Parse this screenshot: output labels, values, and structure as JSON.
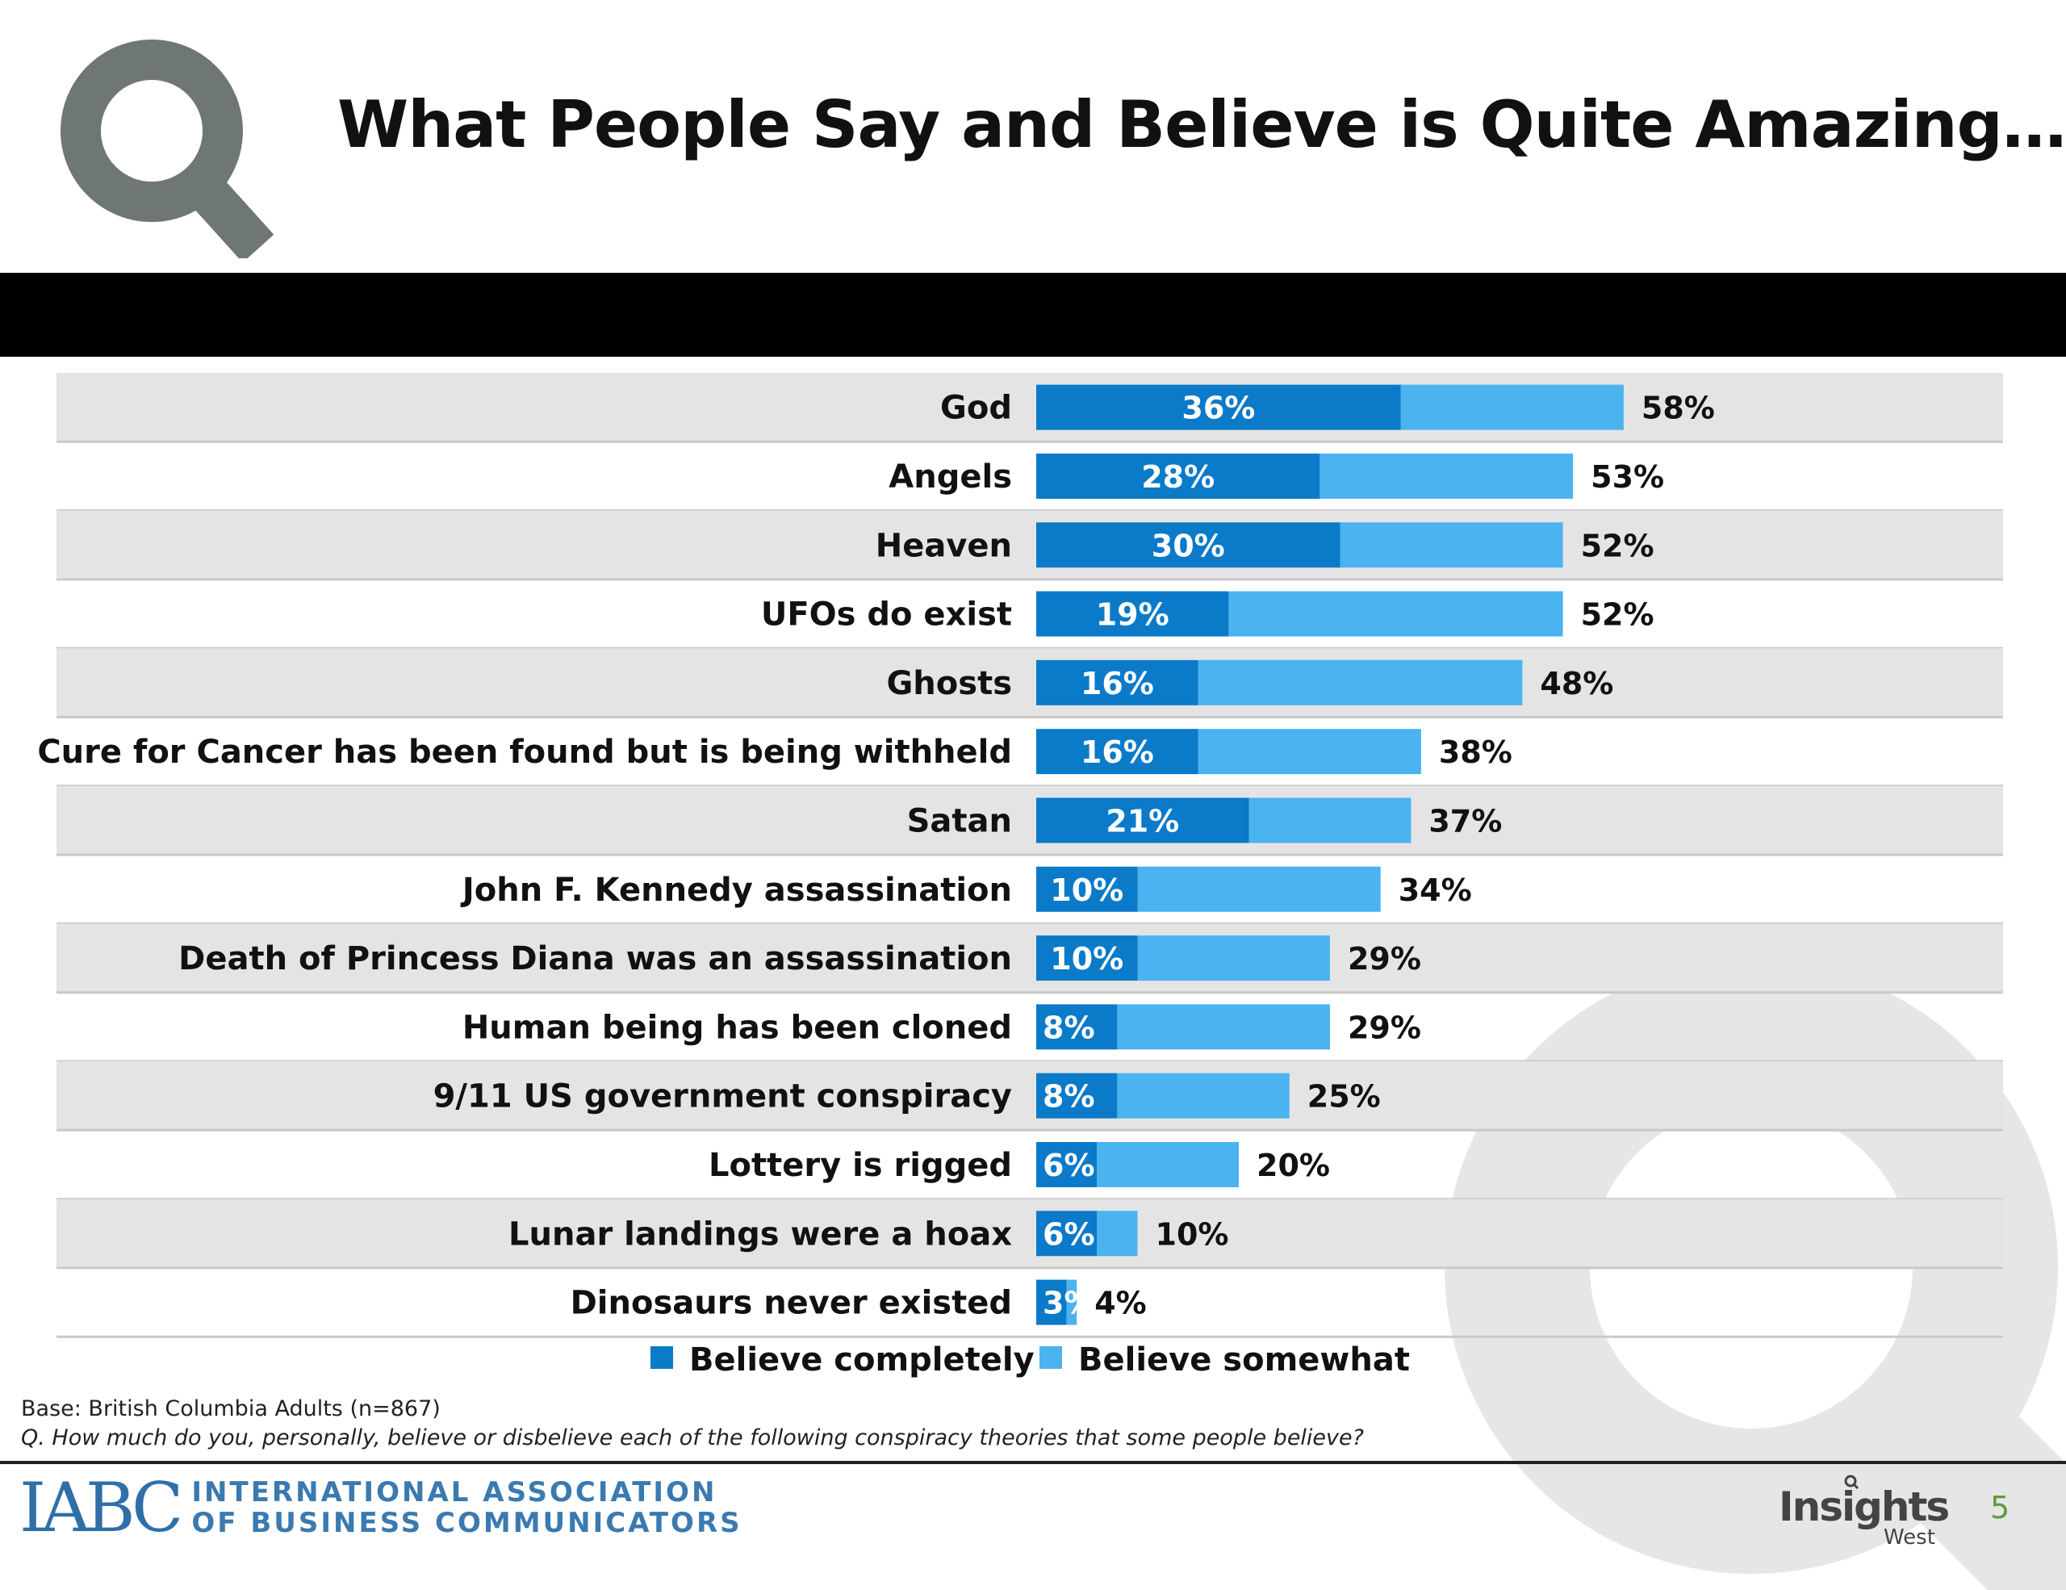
{
  "title": "What People Say and Believe is Quite Amazing…",
  "colors": {
    "completely": "#0a7ac9",
    "somewhat": "#4ab3f0",
    "row_band": "#e4e4e4",
    "logo_grey": "#6f7775",
    "watermark": "#e6e6e6"
  },
  "chart_data": {
    "type": "bar",
    "orientation": "horizontal",
    "stacked": true,
    "categories": [
      "God",
      "Angels",
      "Heaven",
      "UFOs do exist",
      "Ghosts",
      "Cure for Cancer has been found but is being withheld",
      "Satan",
      "John F. Kennedy assassination",
      "Death of Princess Diana was an assassination",
      "Human being has been cloned",
      "9/11 US government conspiracy",
      "Lottery is rigged",
      "Lunar landings were a hoax",
      "Dinosaurs never existed"
    ],
    "series": [
      {
        "name": "Believe completely",
        "values": [
          36,
          28,
          30,
          19,
          16,
          16,
          21,
          10,
          10,
          8,
          8,
          6,
          6,
          3
        ]
      },
      {
        "name": "Believe somewhat",
        "values": [
          22,
          25,
          22,
          33,
          32,
          22,
          16,
          24,
          19,
          21,
          17,
          14,
          4,
          1
        ]
      }
    ],
    "completely_labels": [
      "36%",
      "28%",
      "30%",
      "19%",
      "16%",
      "16%",
      "21%",
      "10%",
      "10%",
      "8%",
      "8%",
      "6%",
      "6%",
      "3%"
    ],
    "total_labels": [
      "58%",
      "53%",
      "52%",
      "52%",
      "48%",
      "38%",
      "37%",
      "34%",
      "29%",
      "29%",
      "25%",
      "20%",
      "10%",
      "4%"
    ],
    "legend": {
      "position": "bottom",
      "entries": [
        "Believe completely",
        "Believe somewhat"
      ]
    },
    "xlim": [
      0,
      100
    ]
  },
  "notes": {
    "base": "Base: British Columbia Adults (n=867)",
    "question": "Q. How much do you, personally, believe or disbelieve each of the following conspiracy theories that some people believe?"
  },
  "footer": {
    "iabc_mark": "IABC",
    "iabc_line1": "INTERNATIONAL ASSOCIATION",
    "iabc_line2": "OF BUSINESS COMMUNICATORS",
    "insights_word": "Insights",
    "insights_sub": "West",
    "page_number": "5"
  }
}
